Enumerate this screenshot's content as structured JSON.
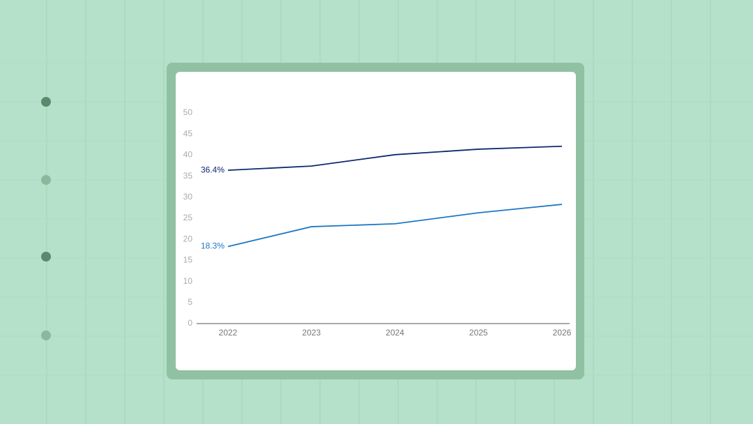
{
  "chart_data": {
    "type": "line",
    "categories": [
      "2022",
      "2023",
      "2024",
      "2025",
      "2026"
    ],
    "series": [
      {
        "color": "#0d2a6e",
        "values": [
          36.4,
          37.4,
          40.1,
          41.4,
          42.1
        ],
        "value_labels": [
          "36.4%",
          null,
          null,
          null,
          null
        ]
      },
      {
        "color": "#1f77c4",
        "values": [
          18.3,
          23.0,
          23.7,
          26.3,
          28.3
        ],
        "value_labels": [
          "18.3%",
          null,
          null,
          null,
          null
        ]
      }
    ],
    "ylim": [
      0,
      50
    ],
    "yticks": [
      0,
      5,
      10,
      15,
      20,
      25,
      30,
      35,
      40,
      45,
      50
    ],
    "grid": false
  }
}
